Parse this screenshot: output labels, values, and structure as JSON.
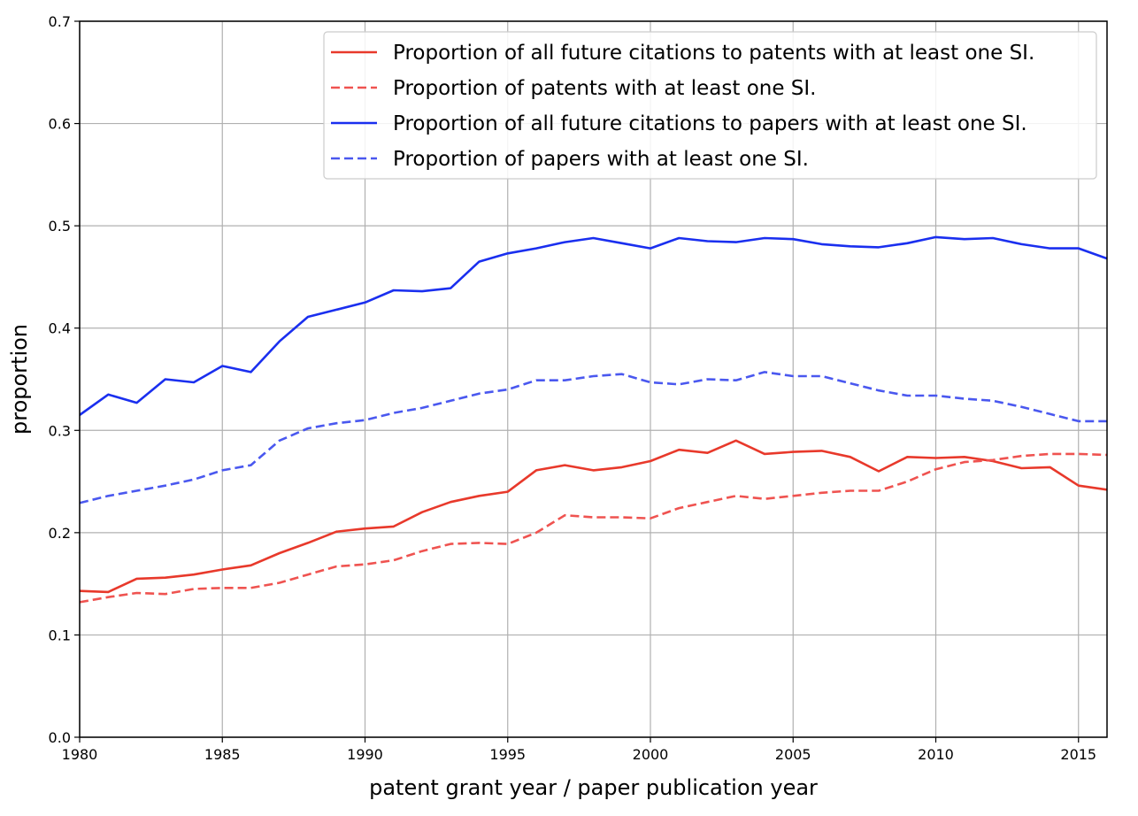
{
  "chart_data": {
    "type": "line",
    "title": "",
    "xlabel": "patent grant year / paper publication year",
    "ylabel": "proportion",
    "xlim": [
      1980,
      2016
    ],
    "ylim": [
      0.0,
      0.7
    ],
    "x_ticks": [
      1980,
      1985,
      1990,
      1995,
      2000,
      2005,
      2010,
      2015
    ],
    "y_ticks": [
      0.0,
      0.1,
      0.2,
      0.3,
      0.4,
      0.5,
      0.6,
      0.7
    ],
    "x_tick_labels": [
      "1980",
      "1985",
      "1990",
      "1995",
      "2000",
      "2005",
      "2010",
      "2015"
    ],
    "y_tick_labels": [
      "0.0",
      "0.1",
      "0.2",
      "0.3",
      "0.4",
      "0.5",
      "0.6",
      "0.7"
    ],
    "grid": true,
    "legend_position": "top-right",
    "x": [
      1980,
      1981,
      1982,
      1983,
      1984,
      1985,
      1986,
      1987,
      1988,
      1989,
      1990,
      1991,
      1992,
      1993,
      1994,
      1995,
      1996,
      1997,
      1998,
      1999,
      2000,
      2001,
      2002,
      2003,
      2004,
      2005,
      2006,
      2007,
      2008,
      2009,
      2010,
      2011,
      2012,
      2013,
      2014,
      2015,
      2016
    ],
    "series": [
      {
        "name": "Proportion of all future citations to patents with at least one SI.",
        "color": "#e8392b",
        "dashed": false,
        "values": [
          0.143,
          0.142,
          0.155,
          0.156,
          0.159,
          0.164,
          0.168,
          0.18,
          0.19,
          0.201,
          0.204,
          0.206,
          0.22,
          0.23,
          0.236,
          0.24,
          0.261,
          0.266,
          0.261,
          0.264,
          0.27,
          0.281,
          0.278,
          0.29,
          0.277,
          0.279,
          0.28,
          0.274,
          0.26,
          0.274,
          0.273,
          0.274,
          0.27,
          0.263,
          0.264,
          0.246,
          0.242
        ]
      },
      {
        "name": "Proportion of patents with at least one SI.",
        "color": "#ef5350",
        "dashed": true,
        "values": [
          0.132,
          0.137,
          0.141,
          0.14,
          0.145,
          0.146,
          0.146,
          0.151,
          0.159,
          0.167,
          0.169,
          0.173,
          0.182,
          0.189,
          0.19,
          0.189,
          0.2,
          0.217,
          0.215,
          0.215,
          0.214,
          0.224,
          0.23,
          0.236,
          0.233,
          0.236,
          0.239,
          0.241,
          0.241,
          0.25,
          0.262,
          0.269,
          0.271,
          0.275,
          0.277,
          0.277,
          0.276
        ]
      },
      {
        "name": "Proportion of all future citations to papers with at least one SI.",
        "color": "#1a2fef",
        "dashed": false,
        "values": [
          0.315,
          0.335,
          0.327,
          0.35,
          0.347,
          0.363,
          0.357,
          0.387,
          0.411,
          0.418,
          0.425,
          0.437,
          0.436,
          0.439,
          0.465,
          0.473,
          0.478,
          0.484,
          0.488,
          0.483,
          0.478,
          0.488,
          0.485,
          0.484,
          0.488,
          0.487,
          0.482,
          0.48,
          0.479,
          0.483,
          0.489,
          0.487,
          0.488,
          0.482,
          0.478,
          0.478,
          0.468
        ]
      },
      {
        "name": "Proportion of papers with at least one SI.",
        "color": "#4a58ef",
        "dashed": true,
        "values": [
          0.229,
          0.236,
          0.241,
          0.246,
          0.252,
          0.261,
          0.266,
          0.29,
          0.302,
          0.307,
          0.31,
          0.317,
          0.322,
          0.329,
          0.336,
          0.34,
          0.349,
          0.349,
          0.353,
          0.355,
          0.347,
          0.345,
          0.35,
          0.349,
          0.357,
          0.353,
          0.353,
          0.346,
          0.339,
          0.334,
          0.334,
          0.331,
          0.329,
          0.323,
          0.316,
          0.309,
          0.309
        ]
      }
    ]
  }
}
